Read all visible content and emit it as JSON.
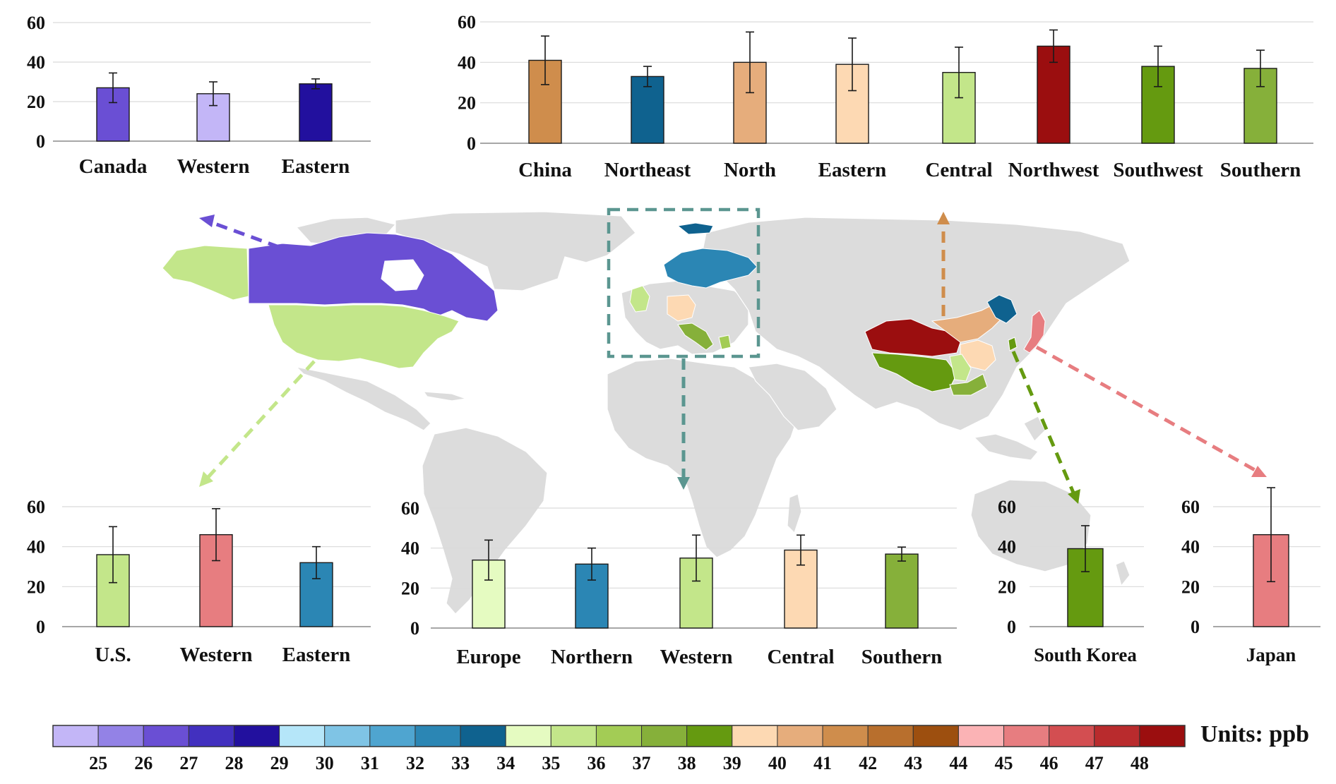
{
  "units_label": "Units: ppb",
  "colorbar": {
    "ticks": [
      "25",
      "26",
      "27",
      "28",
      "29",
      "30",
      "31",
      "32",
      "33",
      "34",
      "35",
      "36",
      "37",
      "38",
      "39",
      "40",
      "41",
      "42",
      "43",
      "44",
      "45",
      "46",
      "47",
      "48"
    ],
    "colors": [
      "#c3b6f7",
      "#9382e6",
      "#6a4fd4",
      "#4230bf",
      "#22109e",
      "#b5e6f9",
      "#7fc4e5",
      "#4fa5d0",
      "#2b86b4",
      "#0f628f",
      "#e5fbc1",
      "#c3e68a",
      "#a3cc55",
      "#86b03a",
      "#659a10",
      "#fdd9b3",
      "#e6ad7c",
      "#cf8d4c",
      "#b86f2d",
      "#9d4f0f",
      "#fbb3b5",
      "#e77d80",
      "#d34e51",
      "#b92b2d",
      "#9b0e0f"
    ]
  },
  "map": {
    "land_color": "#dcdcdc",
    "highlights": [
      {
        "region": "Canada",
        "color": "#6a4fd4"
      },
      {
        "region": "Alaska",
        "color": "#c3e68a"
      },
      {
        "region": "United States",
        "color": "#c3e68a"
      },
      {
        "region": "Scandinavia",
        "color": "#2b86b4"
      },
      {
        "region": "United Kingdom",
        "color": "#c3e68a"
      },
      {
        "region": "Central Europe",
        "color": "#fdd9b3"
      },
      {
        "region": "Italy",
        "color": "#86b03a"
      },
      {
        "region": "Northwest China",
        "color": "#9b0e0f"
      },
      {
        "region": "North China",
        "color": "#e6ad7c"
      },
      {
        "region": "Northeast China",
        "color": "#0f628f"
      },
      {
        "region": "Southwest China",
        "color": "#659a10"
      },
      {
        "region": "South Korea",
        "color": "#659a10"
      },
      {
        "region": "Japan",
        "color": "#e77d80"
      }
    ]
  },
  "chart_data": [
    {
      "id": "canada",
      "type": "bar",
      "ylim": [
        0,
        60
      ],
      "yticks": [
        "0",
        "20",
        "40",
        "60"
      ],
      "categories": [
        "Canada",
        "Western",
        "Eastern"
      ],
      "values": [
        27,
        24,
        29
      ],
      "errors": [
        7.5,
        6,
        2.5
      ],
      "colors": [
        "#6a4fd4",
        "#c3b6f7",
        "#22109e"
      ]
    },
    {
      "id": "china",
      "type": "bar",
      "ylim": [
        0,
        60
      ],
      "yticks": [
        "0",
        "20",
        "40",
        "60"
      ],
      "categories": [
        "China",
        "Northeast",
        "North",
        "Eastern",
        "Central",
        "Northwest",
        "Southwest",
        "Southern"
      ],
      "values": [
        41,
        33,
        40,
        39,
        35,
        48,
        38,
        37
      ],
      "errors": [
        12,
        5,
        15,
        13,
        12.5,
        8,
        10,
        9
      ],
      "colors": [
        "#cf8d4c",
        "#0f628f",
        "#e6ad7c",
        "#fdd9b3",
        "#c3e68a",
        "#9b0e0f",
        "#659a10",
        "#86b03a"
      ]
    },
    {
      "id": "us",
      "type": "bar",
      "ylim": [
        0,
        60
      ],
      "yticks": [
        "0",
        "20",
        "40",
        "60"
      ],
      "categories": [
        "U.S.",
        "Western",
        "Eastern"
      ],
      "values": [
        36,
        46,
        32
      ],
      "errors": [
        14,
        13,
        8
      ],
      "colors": [
        "#c3e68a",
        "#e77d80",
        "#2b86b4"
      ]
    },
    {
      "id": "europe",
      "type": "bar",
      "ylim": [
        0,
        60
      ],
      "yticks": [
        "0",
        "20",
        "40",
        "60"
      ],
      "categories": [
        "Europe",
        "Northern",
        "Western",
        "Central",
        "Southern"
      ],
      "values": [
        34,
        32,
        35,
        39,
        37
      ],
      "errors": [
        10,
        8,
        11.5,
        7.5,
        3.5
      ],
      "colors": [
        "#e5fbc1",
        "#2b86b4",
        "#c3e68a",
        "#fdd9b3",
        "#86b03a"
      ]
    },
    {
      "id": "korea",
      "type": "bar",
      "ylim": [
        0,
        60
      ],
      "yticks": [
        "0",
        "20",
        "40",
        "60"
      ],
      "categories": [
        "South Korea"
      ],
      "values": [
        39
      ],
      "errors": [
        11.5
      ],
      "colors": [
        "#659a10"
      ]
    },
    {
      "id": "japan",
      "type": "bar",
      "ylim": [
        0,
        60
      ],
      "yticks": [
        "0",
        "20",
        "40",
        "60"
      ],
      "categories": [
        "Japan"
      ],
      "values": [
        46
      ],
      "errors": [
        23.5
      ],
      "colors": [
        "#e77d80"
      ]
    }
  ]
}
